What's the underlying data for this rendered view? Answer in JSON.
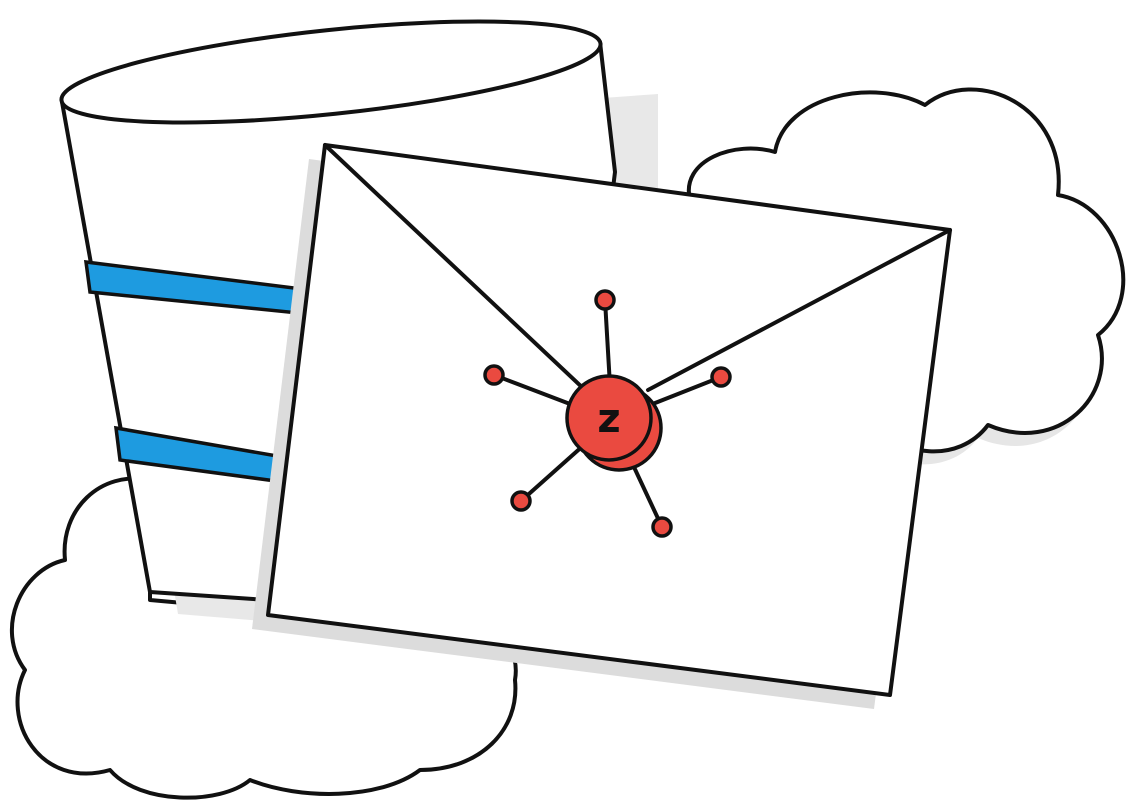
{
  "illustration": {
    "seal_letter": "z",
    "colors": {
      "seal": "#ea4a40",
      "band": "#1e9be0",
      "outline": "#111111",
      "shadow": "#e3e3e3",
      "fill": "#ffffff"
    },
    "icons": [
      "database-icon",
      "envelope-icon",
      "cloud-icon",
      "network-seal-icon"
    ]
  }
}
